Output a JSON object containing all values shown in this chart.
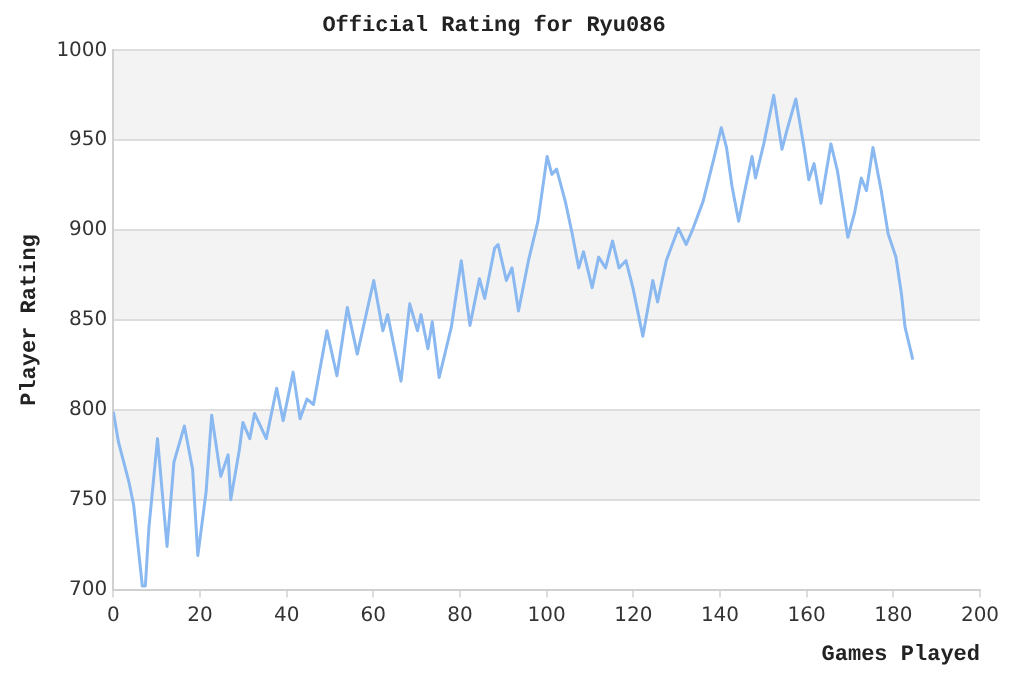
{
  "chart_data": {
    "type": "line",
    "title": "Official Rating for Ryu086",
    "xlabel": "Games Played",
    "ylabel": "Player Rating",
    "xlim": [
      0,
      200
    ],
    "xticks": [
      0,
      20,
      40,
      60,
      80,
      100,
      120,
      140,
      160,
      180,
      200
    ],
    "ylim": [
      700,
      1000
    ],
    "yticks": [
      700,
      750,
      800,
      850,
      900,
      950,
      1000
    ],
    "grid": "y",
    "marker": "none",
    "line_style": "solid",
    "series": [
      {
        "color": "#8ab8f0",
        "x": [
          0,
          1.2,
          3.6,
          4.7,
          6.7,
          7.4,
          8.2,
          10.2,
          12.4,
          14,
          16.4,
          18.3,
          19.5,
          21.4,
          22.7,
          24.8,
          26.5,
          27.1,
          29.1,
          29.9,
          31.5,
          32.6,
          35.3,
          37.7,
          39.2,
          41.5,
          43.1,
          44.7,
          46.2,
          49.3,
          51.6,
          54,
          56.3,
          60.1,
          62.2,
          63.3,
          66.4,
          68.4,
          70.2,
          71,
          72.6,
          73.6,
          75.2,
          78,
          80.3,
          82.3,
          84.5,
          85.7,
          88,
          88.8,
          90.7,
          92,
          93.5,
          95.8,
          98,
          100.1,
          101.2,
          102.3,
          104.3,
          105.9,
          107.4,
          108.5,
          110.5,
          112,
          113.6,
          115.2,
          116.7,
          118.3,
          119.9,
          122.2,
          124.5,
          125.6,
          127.6,
          130.4,
          132.2,
          133.8,
          136.1,
          138.5,
          140.3,
          141.5,
          142.8,
          144.3,
          145.9,
          147.4,
          148.2,
          150.1,
          152.4,
          154.3,
          155.5,
          157.5,
          159.4,
          160.5,
          161.7,
          163.3,
          165.6,
          167.1,
          169.5,
          171,
          172.6,
          173.8,
          175.3,
          177.2,
          178.8,
          180.6,
          181.9,
          182.7,
          184.5
        ],
        "values": [
          799,
          782,
          760,
          747,
          702,
          702,
          734,
          784,
          724,
          771,
          791,
          767,
          719,
          754,
          797,
          763,
          775,
          750,
          778,
          793,
          784,
          798,
          784,
          812,
          794,
          821,
          795,
          806,
          803,
          844,
          819,
          857,
          831,
          872,
          844,
          853,
          816,
          859,
          844,
          853,
          834,
          849,
          818,
          846,
          883,
          847,
          873,
          862,
          890,
          892,
          872,
          879,
          855,
          883,
          905,
          941,
          931,
          934,
          916,
          898,
          879,
          888,
          868,
          885,
          879,
          894,
          879,
          883,
          868,
          841,
          872,
          860,
          883,
          901,
          892,
          901,
          916,
          939,
          957,
          946,
          924,
          905,
          924,
          941,
          929,
          948,
          975,
          945,
          956,
          973,
          946,
          928,
          937,
          915,
          948,
          933,
          896,
          909,
          929,
          922,
          946,
          922,
          898,
          885,
          864,
          846,
          828
        ]
      }
    ]
  }
}
